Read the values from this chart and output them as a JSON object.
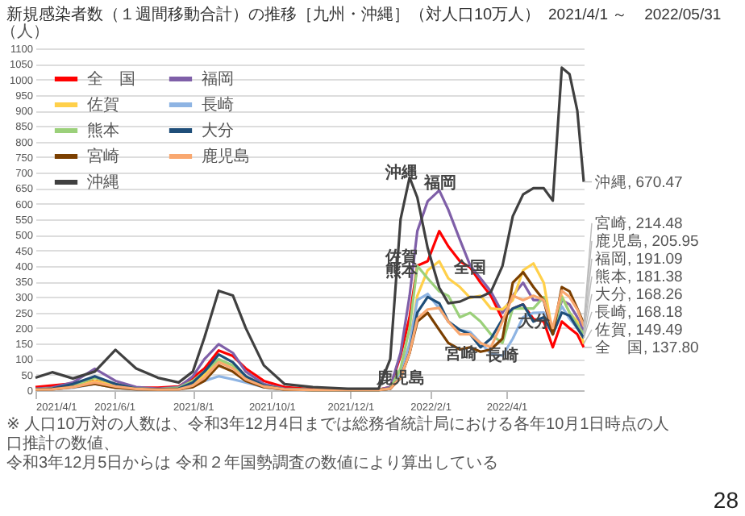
{
  "chart_data": {
    "type": "line",
    "title": "新規感染者数（１週間移動合計）の推移［九州・沖縄］（対人口10万人）",
    "subtitle": "2021/4/1 ～　2022/05/31",
    "ylabel": "（人）",
    "x": [
      "2021-04-01",
      "2021-04-14",
      "2021-04-30",
      "2021-05-17",
      "2021-06-02",
      "2021-06-18",
      "2021-07-05",
      "2021-07-21",
      "2021-08-01",
      "2021-08-10",
      "2021-08-21",
      "2021-09-01",
      "2021-09-11",
      "2021-09-25",
      "2021-10-11",
      "2021-11-02",
      "2021-11-29",
      "2021-12-23",
      "2022-01-01",
      "2022-01-09",
      "2022-01-16",
      "2022-01-22",
      "2022-01-30",
      "2022-02-08",
      "2022-02-15",
      "2022-02-24",
      "2022-03-04",
      "2022-03-12",
      "2022-03-20",
      "2022-03-29",
      "2022-04-06",
      "2022-04-14",
      "2022-04-22",
      "2022-04-30",
      "2022-05-07",
      "2022-05-14",
      "2022-05-20",
      "2022-05-26",
      "2022-05-31"
    ],
    "xlim": [
      "2021-04-01",
      "2022-05-31"
    ],
    "xticks": [
      {
        "value": "2021-04-01",
        "label": "2021/4/1"
      },
      {
        "value": "2021-06-01",
        "label": "2021/6/1"
      },
      {
        "value": "2021-08-01",
        "label": "2021/8/1"
      },
      {
        "value": "2021-10-01",
        "label": "2021/10/1"
      },
      {
        "value": "2021-12-01",
        "label": "2021/12/1"
      },
      {
        "value": "2022-02-01",
        "label": "2022/2/1"
      },
      {
        "value": "2022-04-01",
        "label": "2022/4/1"
      }
    ],
    "ylim": [
      0,
      1100
    ],
    "yticks": [
      0,
      50,
      100,
      150,
      200,
      250,
      300,
      350,
      400,
      450,
      500,
      550,
      600,
      650,
      700,
      750,
      800,
      850,
      900,
      950,
      1000,
      1050,
      1100
    ],
    "grid": "y",
    "legend": "top left",
    "series": [
      {
        "name": "全　国",
        "color": "#ff0000",
        "values": [
          10,
          15,
          22,
          30,
          20,
          8,
          8,
          12,
          40,
          70,
          128,
          110,
          70,
          30,
          10,
          3,
          2,
          2,
          10,
          111,
          235,
          401,
          415,
          512,
          463,
          415,
          395,
          346,
          304,
          229,
          263,
          276,
          229,
          221,
          138,
          221,
          200,
          180,
          137.8
        ]
      },
      {
        "name": "福岡",
        "color": "#7f5fa8",
        "values": [
          5,
          8,
          25,
          69,
          30,
          10,
          5,
          10,
          45,
          100,
          148,
          120,
          60,
          20,
          5,
          2,
          1,
          2,
          10,
          120,
          304,
          512,
          608,
          643,
          581,
          484,
          401,
          360,
          318,
          249,
          304,
          346,
          290,
          290,
          180,
          290,
          276,
          235,
          191.09
        ]
      },
      {
        "name": "佐賀",
        "color": "#ffd04a",
        "values": [
          3,
          5,
          10,
          30,
          15,
          5,
          3,
          5,
          20,
          50,
          95,
          80,
          40,
          15,
          3,
          1,
          1,
          1,
          5,
          60,
          150,
          304,
          386,
          415,
          360,
          332,
          297,
          304,
          263,
          260,
          290,
          386,
          408,
          346,
          180,
          304,
          249,
          221,
          149.49
        ]
      },
      {
        "name": "長崎",
        "color": "#8eb4e3",
        "values": [
          2,
          3,
          8,
          20,
          8,
          3,
          2,
          3,
          15,
          30,
          45,
          35,
          25,
          10,
          2,
          1,
          1,
          1,
          5,
          50,
          150,
          290,
          310,
          263,
          221,
          194,
          187,
          152,
          118,
          111,
          166,
          235,
          249,
          250,
          200,
          270,
          230,
          200,
          168.18
        ]
      },
      {
        "name": "熊本",
        "color": "#9bd07a",
        "values": [
          3,
          5,
          15,
          40,
          20,
          5,
          3,
          8,
          30,
          60,
          100,
          80,
          45,
          15,
          3,
          1,
          1,
          1,
          5,
          70,
          200,
          400,
          360,
          318,
          304,
          235,
          249,
          221,
          180,
          152,
          263,
          263,
          263,
          300,
          180,
          300,
          250,
          210,
          181.38
        ]
      },
      {
        "name": "大分",
        "color": "#1f4e79",
        "values": [
          2,
          5,
          20,
          45,
          20,
          5,
          3,
          5,
          25,
          60,
          115,
          90,
          45,
          15,
          3,
          1,
          1,
          1,
          5,
          40,
          120,
          250,
          300,
          280,
          221,
          194,
          180,
          138,
          166,
          229,
          263,
          276,
          221,
          235,
          180,
          250,
          240,
          200,
          168.26
        ]
      },
      {
        "name": "宮崎",
        "color": "#7b3f00",
        "values": [
          2,
          3,
          10,
          20,
          8,
          3,
          2,
          3,
          10,
          30,
          80,
          60,
          30,
          10,
          2,
          1,
          1,
          1,
          5,
          40,
          120,
          221,
          249,
          194,
          152,
          131,
          138,
          124,
          131,
          166,
          346,
          380,
          332,
          290,
          180,
          332,
          318,
          263,
          214.48
        ]
      },
      {
        "name": "鹿児島",
        "color": "#f9a870",
        "values": [
          2,
          3,
          10,
          25,
          12,
          4,
          2,
          3,
          15,
          40,
          90,
          70,
          35,
          12,
          3,
          1,
          1,
          1,
          5,
          40,
          120,
          230,
          260,
          265,
          221,
          180,
          180,
          152,
          138,
          221,
          304,
          290,
          304,
          290,
          200,
          320,
          300,
          260,
          205.95
        ]
      },
      {
        "name": "沖縄",
        "color": "#404040",
        "values": [
          40,
          58,
          38,
          60,
          130,
          70,
          40,
          25,
          60,
          170,
          320,
          305,
          200,
          80,
          20,
          10,
          5,
          5,
          100,
          550,
          685,
          620,
          458,
          330,
          280,
          285,
          300,
          300,
          316,
          400,
          560,
          630,
          650,
          650,
          610,
          1038,
          1017,
          900,
          670.47
        ]
      }
    ],
    "annotations": [
      {
        "text": "沖縄",
        "x": "2022-01-10",
        "y": 700
      },
      {
        "text": "福岡",
        "x": "2022-02-09",
        "y": 667
      },
      {
        "text": "全国",
        "x": "2022-03-04",
        "y": 395
      },
      {
        "text": "佐賀",
        "x": "2022-01-10",
        "y": 429
      },
      {
        "text": "熊本",
        "x": "2022-01-10",
        "y": 384
      },
      {
        "text": "宮崎",
        "x": "2022-02-25",
        "y": 117
      },
      {
        "text": "長崎",
        "x": "2022-03-29",
        "y": 111
      },
      {
        "text": "大分",
        "x": "2022-04-22",
        "y": 221
      },
      {
        "text": "鹿児島",
        "x": "2022-01-09",
        "y": 40
      },
      {
        "text": "沖縄, 670.47",
        "x": "2022-05-31",
        "y": 670.47
      },
      {
        "text": "宮崎, 214.48",
        "x": "2022-05-31",
        "y": 214.48
      },
      {
        "text": "鹿児島, 205.95",
        "x": "2022-05-31",
        "y": 205.95
      },
      {
        "text": "福岡, 191.09",
        "x": "2022-05-31",
        "y": 191.09
      },
      {
        "text": "熊本, 181.38",
        "x": "2022-05-31",
        "y": 181.38
      },
      {
        "text": "大分, 168.26",
        "x": "2022-05-31",
        "y": 168.26
      },
      {
        "text": "長崎, 168.18",
        "x": "2022-05-31",
        "y": 168.18
      },
      {
        "text": "佐賀, 149.49",
        "x": "2022-05-31",
        "y": 149.49
      },
      {
        "text": "全　国, 137.80",
        "x": "2022-05-31",
        "y": 137.8
      },
      "※ 人口10万対の人数は、令和3年12月4日までは総務省統計局における各年10月1日時点の人口推計の数値、",
      "令和3年12月5日からは 令和２年国勢調査の数値により算出している",
      "28"
    ]
  }
}
